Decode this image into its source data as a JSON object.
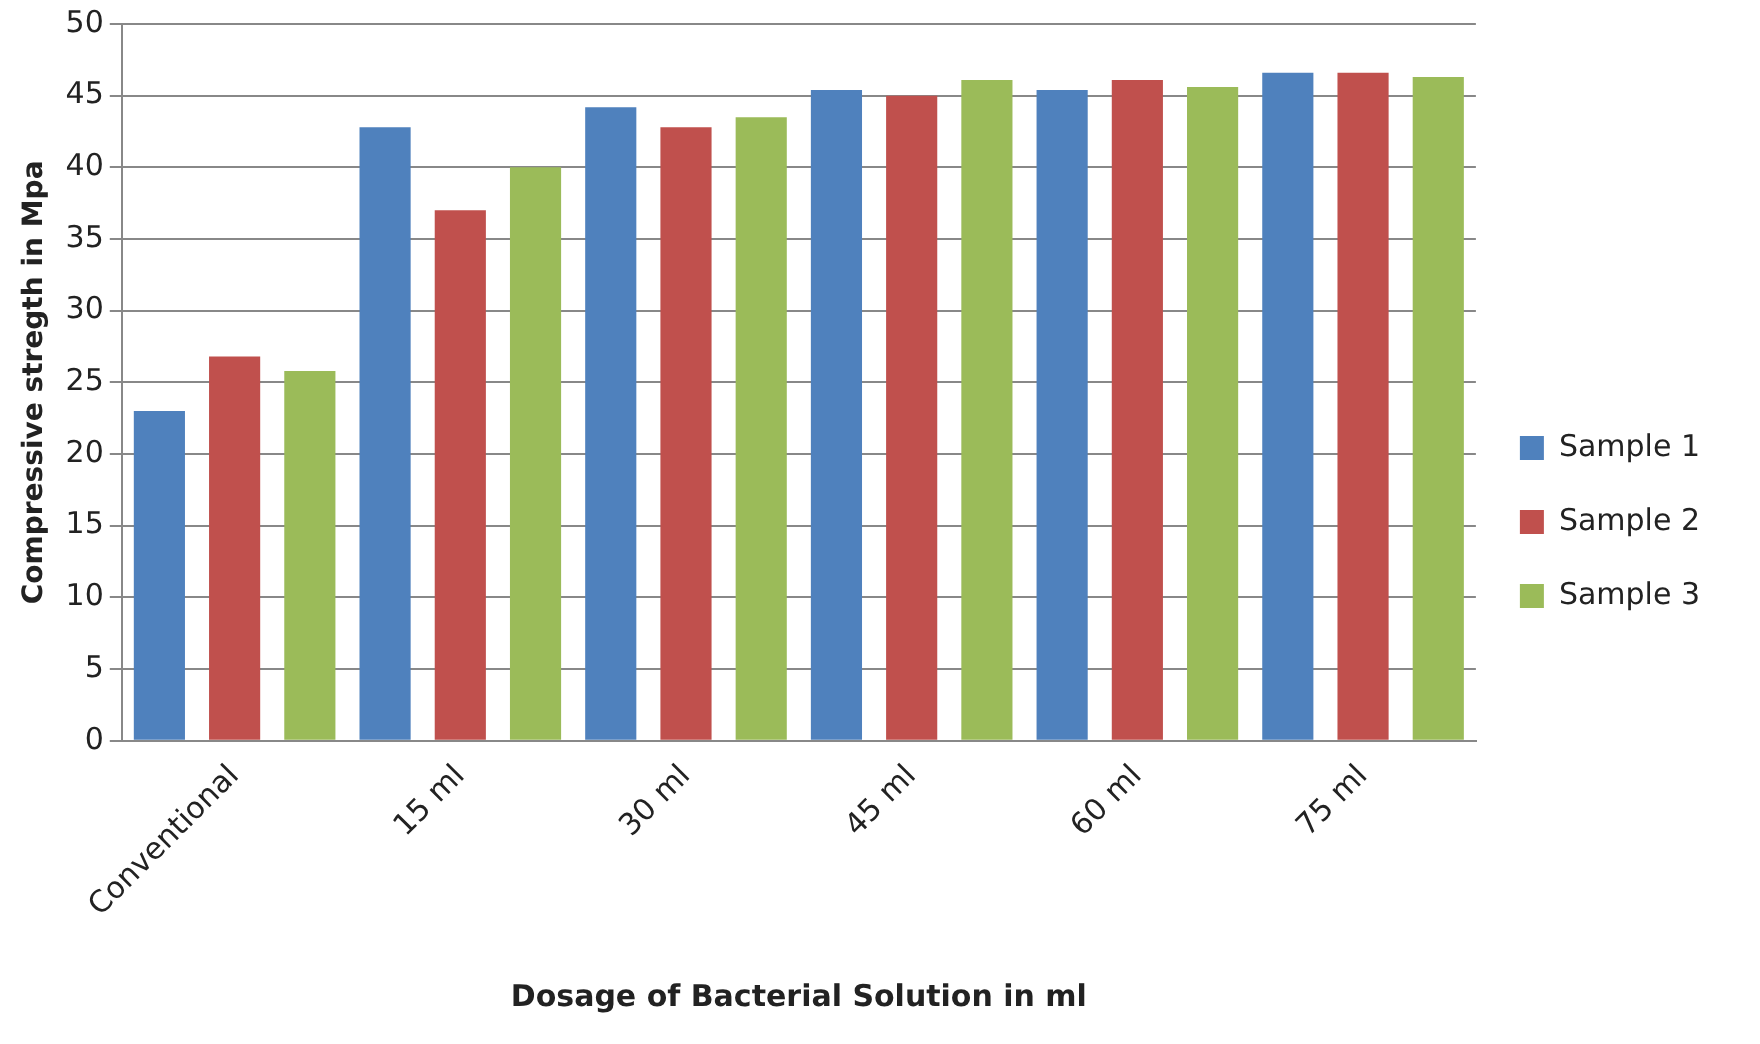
{
  "chart_data": {
    "type": "bar",
    "xlabel": "Dosage of Bacterial Solution in ml",
    "ylabel": "Compressive stregth in Mpa",
    "categories": [
      "Conventional",
      "15 ml",
      "30 ml",
      "45 ml",
      "60 ml",
      "75 ml"
    ],
    "series": [
      {
        "name": "Sample 1",
        "color": "#4f81bd",
        "values": [
          23,
          42.8,
          44.2,
          45.4,
          45.4,
          46.6
        ]
      },
      {
        "name": "Sample 2",
        "color": "#c0504d",
        "values": [
          26.8,
          37,
          42.8,
          45,
          46.1,
          46.6
        ]
      },
      {
        "name": "Sample 3",
        "color": "#9bbb59",
        "values": [
          25.8,
          40,
          43.5,
          46.1,
          45.6,
          46.3
        ]
      }
    ],
    "ylim": [
      0,
      50
    ],
    "yticks": [
      0,
      5,
      10,
      15,
      20,
      25,
      30,
      35,
      40,
      45,
      50
    ],
    "grid": "y",
    "legend": "right"
  }
}
